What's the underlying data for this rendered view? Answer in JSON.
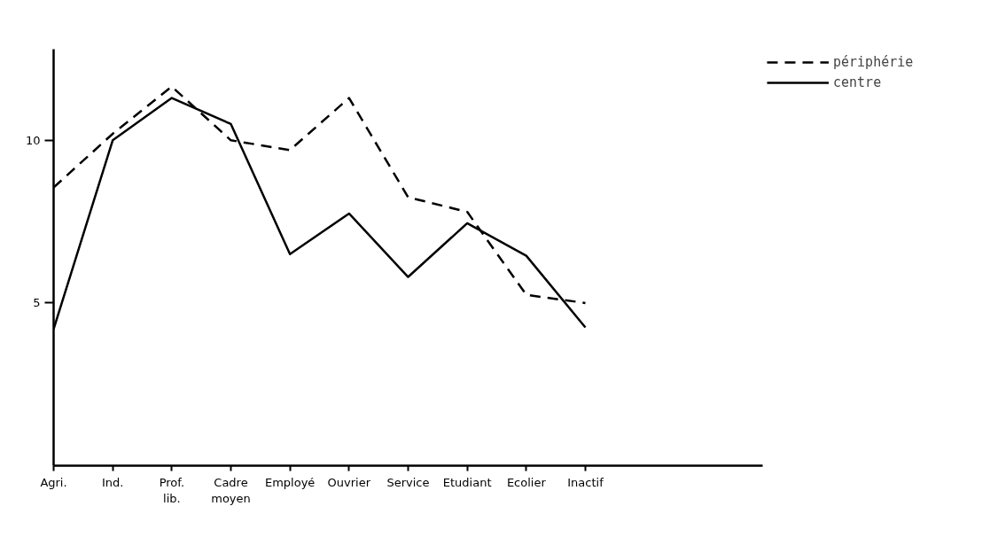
{
  "chart_data": {
    "type": "line",
    "categories": [
      "Agri.",
      "Ind.",
      "Prof.\nlib.",
      "Cadre\nmoyen",
      "Employé",
      "Ouvrier",
      "Service",
      "Etudiant",
      "Ecolier",
      "Inactif"
    ],
    "series": [
      {
        "name": "périphérie",
        "color": "#000000",
        "line_style": "dashed",
        "values": [
          8.55,
          10.2,
          11.65,
          10.0,
          9.7,
          11.3,
          8.25,
          7.8,
          5.25,
          5.0
        ]
      },
      {
        "name": "centre",
        "color": "#000000",
        "line_style": "solid",
        "values": [
          4.2,
          10.0,
          11.3,
          10.5,
          6.5,
          7.75,
          5.8,
          7.45,
          6.45,
          4.25
        ]
      }
    ],
    "ylim": [
      0,
      12.8
    ],
    "yticks": [
      5,
      10
    ],
    "grid": false,
    "legend": "right"
  }
}
